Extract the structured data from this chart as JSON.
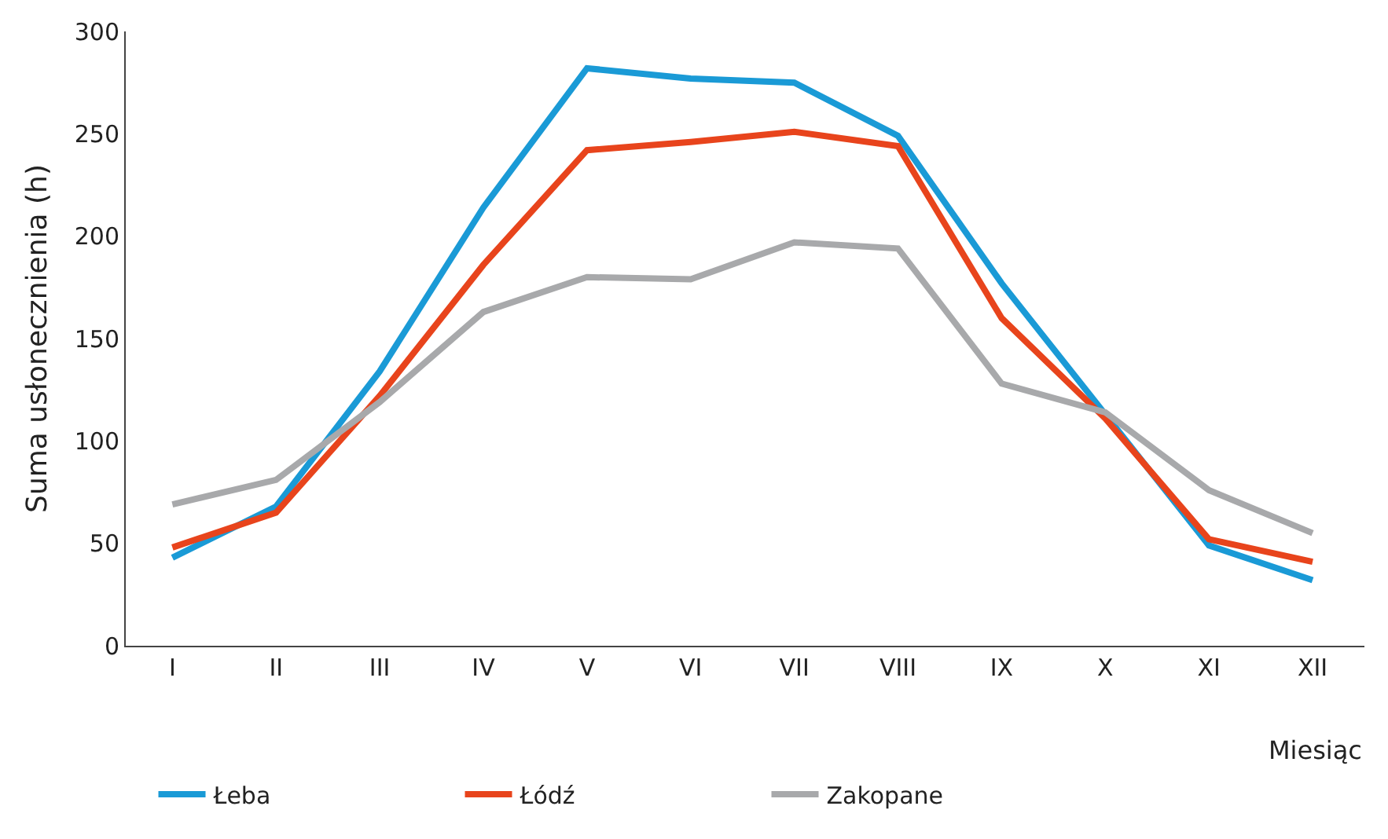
{
  "chart_data": {
    "type": "line",
    "xlabel": "Miesiąc",
    "ylabel": "Suma usłonecznienia (h)",
    "categories": [
      "I",
      "II",
      "III",
      "IV",
      "V",
      "VI",
      "VII",
      "VIII",
      "IX",
      "X",
      "XI",
      "XII"
    ],
    "series": [
      {
        "name": "Łeba",
        "color": "#1a9ad6",
        "values": [
          43,
          68,
          134,
          214,
          282,
          277,
          275,
          249,
          177,
          113,
          49,
          32
        ]
      },
      {
        "name": "Łódź",
        "color": "#e8441c",
        "values": [
          48,
          65,
          122,
          186,
          242,
          246,
          251,
          244,
          160,
          111,
          52,
          41
        ]
      },
      {
        "name": "Zakopane",
        "color": "#a8a9ab",
        "values": [
          69,
          81,
          119,
          163,
          180,
          179,
          197,
          194,
          128,
          114,
          76,
          55
        ]
      }
    ],
    "ylim": [
      0,
      300
    ],
    "yticks": [
      0,
      50,
      100,
      150,
      200,
      250,
      300
    ],
    "legend": "bottom",
    "marker": "none",
    "line_style": "solid"
  }
}
